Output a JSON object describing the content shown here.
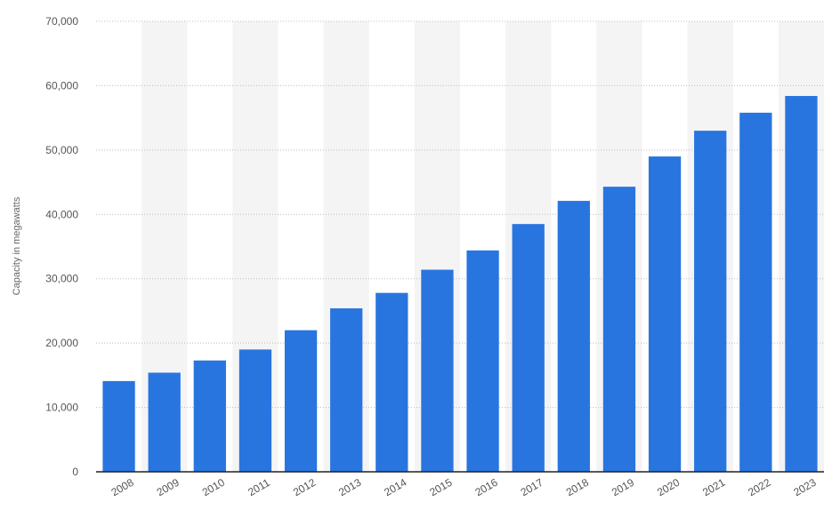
{
  "chart_data": {
    "type": "bar",
    "title": "",
    "xlabel": "",
    "ylabel": "Capacity in megawatts",
    "ylim": [
      0,
      70000
    ],
    "yticks": [
      0,
      10000,
      20000,
      30000,
      40000,
      50000,
      60000,
      70000
    ],
    "ytick_labels": [
      "0",
      "10,000",
      "20,000",
      "30,000",
      "40,000",
      "50,000",
      "60,000",
      "70,000"
    ],
    "categories": [
      "2008",
      "2009",
      "2010",
      "2011",
      "2012",
      "2013",
      "2014",
      "2015",
      "2016",
      "2017",
      "2018",
      "2019",
      "2020",
      "2021",
      "2022",
      "2023"
    ],
    "values": [
      14100,
      15400,
      17300,
      19000,
      22000,
      25400,
      27800,
      31400,
      34400,
      38500,
      42100,
      44300,
      49000,
      53000,
      55800,
      58400
    ],
    "grid": true,
    "legend": "none",
    "colors": {
      "bar": "#2975e0",
      "band": "#f4f4f4",
      "grid": "#bdbdbd",
      "axis": "#222222"
    }
  }
}
